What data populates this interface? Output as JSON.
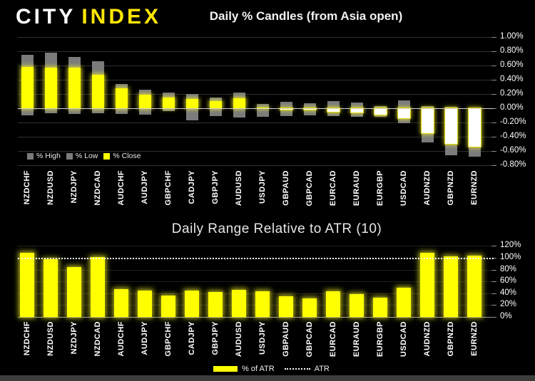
{
  "logo": {
    "primary": "CITY",
    "secondary": "INDEX"
  },
  "colors": {
    "accent_yellow": "#ffff00",
    "candle_gray": "#7b7b7b",
    "negative_close_fill": "#ffffff",
    "background": "#000000",
    "atr_line": "#ffffff"
  },
  "chart_data": [
    {
      "type": "bar",
      "subtype": "high-low-close-candles",
      "title": "Daily % Candles (from Asia open)",
      "categories": [
        "NZDCHF",
        "NZDUSD",
        "NZDJPY",
        "NZDCAD",
        "AUDCHF",
        "AUDJPY",
        "GBPCHF",
        "CADJPY",
        "GBPJPY",
        "AUDUSD",
        "USDJPY",
        "GBPAUD",
        "GBPCAD",
        "EURCAD",
        "EURAUD",
        "EURGBP",
        "USDCAD",
        "AUDNZD",
        "GBPNZD",
        "EURNZD"
      ],
      "series": [
        {
          "name": "% High",
          "values": [
            0.75,
            0.78,
            0.72,
            0.66,
            0.34,
            0.26,
            0.22,
            0.2,
            0.15,
            0.22,
            0.06,
            0.09,
            0.07,
            0.1,
            0.08,
            0.03,
            0.11,
            0.03,
            0.02,
            0.01
          ]
        },
        {
          "name": "% Low",
          "values": [
            -0.1,
            -0.07,
            -0.08,
            -0.07,
            -0.08,
            -0.09,
            -0.04,
            -0.17,
            -0.11,
            -0.13,
            -0.12,
            -0.11,
            -0.1,
            -0.11,
            -0.12,
            -0.12,
            -0.21,
            -0.48,
            -0.66,
            -0.68
          ]
        },
        {
          "name": "% Close",
          "values": [
            0.58,
            0.57,
            0.57,
            0.47,
            0.28,
            0.19,
            0.15,
            0.13,
            0.1,
            0.14,
            0.01,
            -0.01,
            -0.02,
            -0.05,
            -0.06,
            -0.09,
            -0.14,
            -0.35,
            -0.5,
            -0.54
          ]
        }
      ],
      "legend": [
        "% High",
        "% Low",
        "% Close"
      ],
      "legend_position": "inside-bottom-left",
      "ylim": [
        -0.8,
        1.0
      ],
      "yticks": [
        {
          "label": "1.00%",
          "value": 1.0
        },
        {
          "label": "0.80%",
          "value": 0.8
        },
        {
          "label": "0.60%",
          "value": 0.6
        },
        {
          "label": "0.40%",
          "value": 0.4
        },
        {
          "label": "0.20%",
          "value": 0.2
        },
        {
          "label": "0.00%",
          "value": 0.0
        },
        {
          "label": "-0.20%",
          "value": -0.2
        },
        {
          "label": "-0.40%",
          "value": -0.4
        },
        {
          "label": "-0.60%",
          "value": -0.6
        },
        {
          "label": "-0.80%",
          "value": -0.8
        }
      ],
      "grid": true,
      "yaxis_position": "right"
    },
    {
      "type": "bar",
      "title": "Daily Range Relative to ATR (10)",
      "categories": [
        "NZDCHF",
        "NZDUSD",
        "NZDJPY",
        "NZDCAD",
        "AUDCHF",
        "AUDJPY",
        "GBPCHF",
        "CADJPY",
        "GBPJPY",
        "AUDUSD",
        "USDJPY",
        "GBPAUD",
        "GBPCAD",
        "EURCAD",
        "EURAUD",
        "EURGBP",
        "USDCAD",
        "AUDNZD",
        "GBPNZD",
        "EURNZD"
      ],
      "series": [
        {
          "name": "% of ATR",
          "values": [
            108,
            97,
            84,
            101,
            47,
            45,
            36,
            45,
            42,
            46,
            43,
            35,
            31,
            43,
            39,
            32,
            49,
            109,
            102,
            104
          ]
        },
        {
          "name": "ATR",
          "type": "dotted-reference-line",
          "value": 100
        }
      ],
      "legend": [
        "% of ATR",
        "ATR"
      ],
      "legend_position": "bottom-center",
      "ylim": [
        0,
        120
      ],
      "yticks": [
        {
          "label": "120%",
          "value": 120
        },
        {
          "label": "100%",
          "value": 100
        },
        {
          "label": "80%",
          "value": 80
        },
        {
          "label": "60%",
          "value": 60
        },
        {
          "label": "40%",
          "value": 40
        },
        {
          "label": "20%",
          "value": 20
        },
        {
          "label": "0%",
          "value": 0
        }
      ],
      "grid": true,
      "yaxis_position": "right"
    }
  ]
}
